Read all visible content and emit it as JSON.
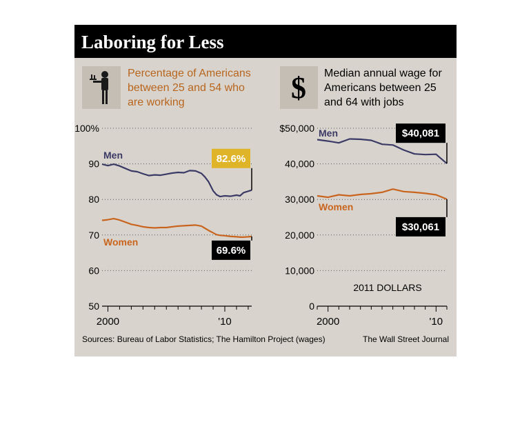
{
  "title": "Laboring for Less",
  "left_subtitle": [
    "Percentage of Americans",
    "between 25 and 54 who",
    "are working"
  ],
  "right_subtitle": [
    "Median annual wage for",
    "Americans between 25",
    "and 64 with jobs"
  ],
  "right_icon": "dollar-icon",
  "left_icon": "worker-icon",
  "sources": "Sources: Bureau of Labor Statistics; The Hamilton Project (wages)",
  "credit": "The Wall Street Journal",
  "colors": {
    "men": "#3b3a66",
    "women": "#c9641e",
    "background": "#d8d4cd",
    "title_bar": "#000000"
  },
  "chart_data": [
    {
      "type": "line",
      "title": "Percentage of Americans between 25 and 54 who are working",
      "x_tick_labels": [
        "2000",
        "'10"
      ],
      "y_tick_labels": [
        "100%",
        "90",
        "80",
        "70",
        "60",
        "50"
      ],
      "ylim": [
        50,
        100
      ],
      "xlim": [
        1999.5,
        2012.3
      ],
      "grid": true,
      "series": [
        {
          "name": "Men",
          "color": "#3b3a66",
          "end_label": "82.6%",
          "x": [
            1999.5,
            2000,
            2000.5,
            2001,
            2001.5,
            2002,
            2002.5,
            2003,
            2003.5,
            2004,
            2004.5,
            2005,
            2005.5,
            2006,
            2006.5,
            2007,
            2007.5,
            2008,
            2008.3,
            2008.6,
            2009,
            2009.3,
            2009.6,
            2010,
            2010.5,
            2011,
            2011.3,
            2011.6,
            2012,
            2012.3
          ],
          "values": [
            89.9,
            89.5,
            89.9,
            89.4,
            88.7,
            88.0,
            87.8,
            87.2,
            86.7,
            86.9,
            86.8,
            87.1,
            87.4,
            87.6,
            87.5,
            88.1,
            88.0,
            87.3,
            86.3,
            85.0,
            82.4,
            81.3,
            80.8,
            81.0,
            80.9,
            81.2,
            81.0,
            81.9,
            82.3,
            82.6
          ]
        },
        {
          "name": "Women",
          "color": "#c9641e",
          "end_label": "69.6%",
          "x": [
            1999.5,
            2000,
            2000.5,
            2001,
            2001.5,
            2002,
            2002.5,
            2003,
            2003.5,
            2004,
            2004.5,
            2005,
            2005.5,
            2006,
            2006.5,
            2007,
            2007.5,
            2008,
            2008.3,
            2008.6,
            2009,
            2009.3,
            2009.6,
            2010,
            2010.5,
            2011,
            2011.3,
            2011.6,
            2012,
            2012.3
          ],
          "values": [
            74.1,
            74.3,
            74.6,
            74.2,
            73.6,
            73.0,
            72.7,
            72.3,
            72.1,
            72.0,
            72.1,
            72.1,
            72.3,
            72.5,
            72.6,
            72.7,
            72.8,
            72.5,
            71.9,
            71.3,
            70.6,
            70.1,
            69.9,
            69.8,
            69.6,
            69.5,
            69.4,
            69.4,
            69.5,
            69.6
          ]
        }
      ]
    },
    {
      "type": "line",
      "title": "Median annual wage for Americans between 25 and 64 with jobs",
      "annotation": "2011 DOLLARS",
      "x_tick_labels": [
        "2000",
        "'10"
      ],
      "y_tick_labels": [
        "$50,000",
        "40,000",
        "30,000",
        "20,000",
        "10,000",
        "0"
      ],
      "ylim": [
        0,
        50000
      ],
      "xlim": [
        1999,
        2011
      ],
      "grid": true,
      "series": [
        {
          "name": "Men",
          "color": "#3b3a66",
          "end_label": "$40,081",
          "x": [
            1999,
            2000,
            2001,
            2002,
            2003,
            2004,
            2005,
            2006,
            2007,
            2008,
            2009,
            2010,
            2011
          ],
          "values": [
            46800,
            46400,
            45900,
            47000,
            46900,
            46600,
            45500,
            45300,
            43900,
            42800,
            42600,
            42700,
            40081
          ]
        },
        {
          "name": "Women",
          "color": "#c9641e",
          "end_label": "$30,061",
          "x": [
            1999,
            2000,
            2001,
            2002,
            2003,
            2004,
            2005,
            2006,
            2007,
            2008,
            2009,
            2010,
            2011
          ],
          "values": [
            31000,
            30600,
            31300,
            31000,
            31400,
            31600,
            32000,
            32900,
            32200,
            32000,
            31700,
            31300,
            30061
          ]
        }
      ]
    }
  ]
}
